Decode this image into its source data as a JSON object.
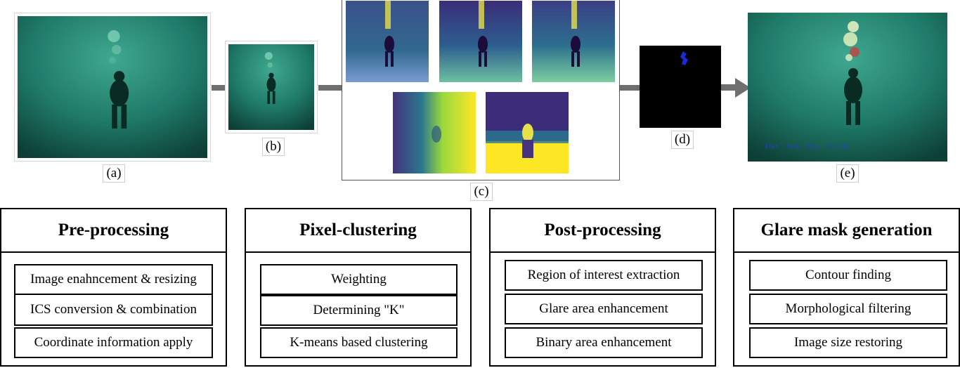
{
  "captions": {
    "a": "(a)",
    "b": "(b)",
    "c": "(c)",
    "d": "(d)",
    "e": "(e)"
  },
  "result_overlay_text": "Iter : N/A, Time : 28.29s",
  "panels": [
    {
      "title": "Pre-processing",
      "steps": [
        "Image enahncement & resizing",
        "ICS conversion & combination",
        "Coordinate information apply"
      ]
    },
    {
      "title": "Pixel-clustering",
      "steps": [
        "Weighting",
        "Determining \"K\"",
        "K-means based clustering"
      ]
    },
    {
      "title": "Post-processing",
      "steps": [
        "Region of interest extraction",
        "Glare area enhancement",
        "Binary area enhancement"
      ]
    },
    {
      "title": "Glare mask generation",
      "steps": [
        "Contour finding",
        "Morphological filtering",
        "Image size restoring"
      ]
    }
  ],
  "colors": {
    "underwater_dark": "#0d3f36",
    "underwater_mid": "#1f7a68",
    "underwater_light": "#3fa890",
    "viridis_dark": "#440154",
    "viridis_blue": "#3b528b",
    "viridis_teal": "#21918c",
    "viridis_green": "#5ec962",
    "viridis_yellow": "#fde725",
    "mask_blue": "#1a2bd6",
    "arrow_gray": "#6f6f6f"
  }
}
